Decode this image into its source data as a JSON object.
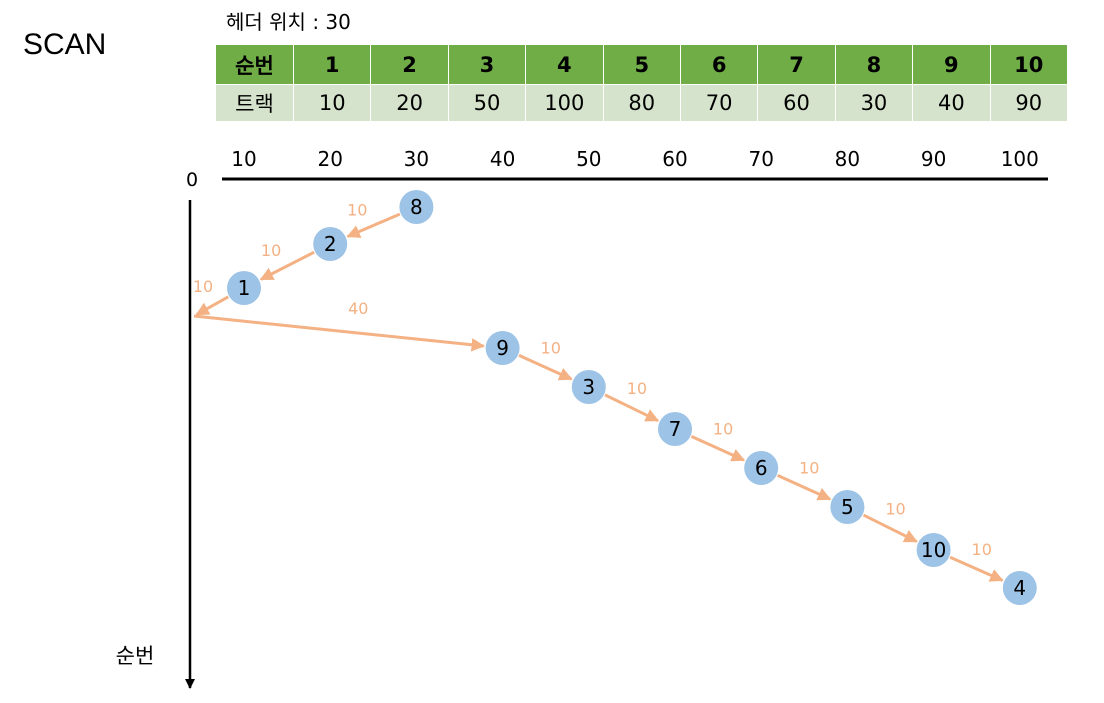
{
  "title": "SCAN",
  "header_position": "헤더 위치 : 30",
  "table": {
    "row_labels": [
      "순번",
      "트랙"
    ],
    "order": [
      "1",
      "2",
      "3",
      "4",
      "5",
      "6",
      "7",
      "8",
      "9",
      "10"
    ],
    "tracks": [
      "10",
      "20",
      "50",
      "100",
      "80",
      "70",
      "60",
      "30",
      "40",
      "90"
    ]
  },
  "axis": {
    "origin_label": "0",
    "ticks": [
      "10",
      "20",
      "30",
      "40",
      "50",
      "60",
      "70",
      "80",
      "90",
      "100"
    ],
    "y_label": "순번"
  },
  "service_sequence": [
    {
      "node": "8",
      "track": 30
    },
    {
      "node": "2",
      "track": 20
    },
    {
      "node": "1",
      "track": 10
    },
    {
      "node": "",
      "track": 0
    },
    {
      "node": "9",
      "track": 40
    },
    {
      "node": "3",
      "track": 50
    },
    {
      "node": "7",
      "track": 60
    },
    {
      "node": "6",
      "track": 70
    },
    {
      "node": "5",
      "track": 80
    },
    {
      "node": "10",
      "track": 90
    },
    {
      "node": "4",
      "track": 100
    }
  ],
  "movements": [
    "10",
    "10",
    "10",
    "40",
    "10",
    "10",
    "10",
    "10",
    "10",
    "10"
  ],
  "colors": {
    "header_green": "#70ad47",
    "track_row": "#d5e3cc",
    "node_fill": "#9dc3e6",
    "arrow": "#f4b183"
  }
}
